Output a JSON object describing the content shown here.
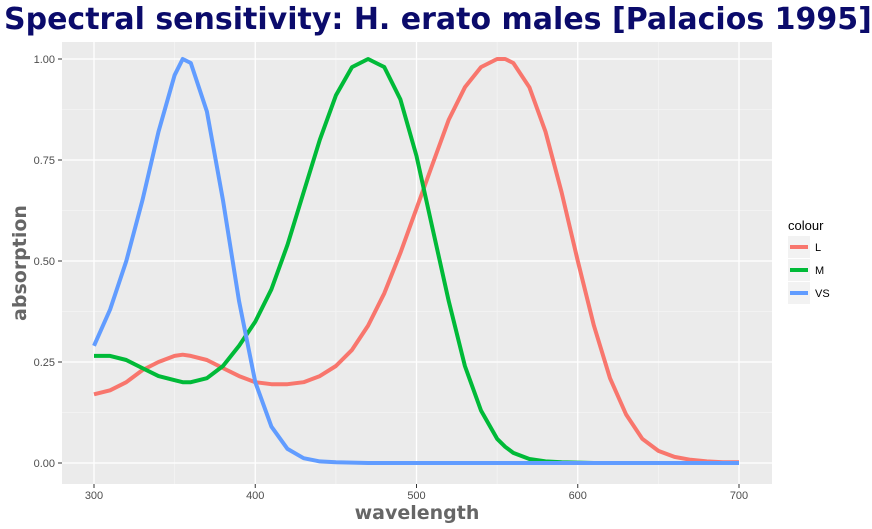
{
  "chart_data": {
    "type": "line",
    "title": "Spectral sensitivity: H. erato males [Palacios 1995]",
    "xlabel": "wavelength",
    "ylabel": "absorption",
    "xlim": [
      300,
      700
    ],
    "ylim": [
      0,
      1
    ],
    "xticks": [
      300,
      400,
      500,
      600,
      700
    ],
    "yticks": [
      "0.00",
      "0.25",
      "0.50",
      "0.75",
      "1.00"
    ],
    "grid": true,
    "legend": {
      "title": "colour",
      "position": "right"
    },
    "x": [
      300,
      310,
      320,
      330,
      340,
      350,
      355,
      360,
      370,
      380,
      390,
      400,
      410,
      420,
      430,
      440,
      450,
      460,
      470,
      480,
      490,
      500,
      510,
      520,
      530,
      540,
      550,
      555,
      560,
      570,
      580,
      590,
      600,
      610,
      620,
      630,
      640,
      650,
      660,
      670,
      680,
      690,
      700
    ],
    "series": [
      {
        "name": "L",
        "color": "#f8766d",
        "values": [
          0.17,
          0.18,
          0.2,
          0.23,
          0.25,
          0.265,
          0.268,
          0.265,
          0.255,
          0.235,
          0.215,
          0.2,
          0.195,
          0.195,
          0.2,
          0.215,
          0.24,
          0.28,
          0.34,
          0.42,
          0.52,
          0.63,
          0.74,
          0.85,
          0.93,
          0.98,
          1.0,
          1.0,
          0.99,
          0.93,
          0.82,
          0.67,
          0.5,
          0.34,
          0.21,
          0.12,
          0.06,
          0.03,
          0.015,
          0.008,
          0.004,
          0.002,
          0.002
        ]
      },
      {
        "name": "M",
        "color": "#00ba38",
        "values": [
          0.265,
          0.265,
          0.255,
          0.235,
          0.215,
          0.205,
          0.2,
          0.2,
          0.21,
          0.24,
          0.29,
          0.35,
          0.43,
          0.54,
          0.67,
          0.8,
          0.91,
          0.98,
          1.0,
          0.98,
          0.9,
          0.76,
          0.58,
          0.4,
          0.24,
          0.13,
          0.06,
          0.04,
          0.025,
          0.01,
          0.004,
          0.002,
          0.001,
          0,
          0,
          0,
          0,
          0,
          0,
          0,
          0,
          0,
          0
        ]
      },
      {
        "name": "VS",
        "color": "#619cff",
        "values": [
          0.29,
          0.38,
          0.5,
          0.65,
          0.82,
          0.96,
          1.0,
          0.99,
          0.87,
          0.65,
          0.4,
          0.2,
          0.09,
          0.035,
          0.012,
          0.004,
          0.002,
          0.001,
          0,
          0,
          0,
          0,
          0,
          0,
          0,
          0,
          0,
          0,
          0,
          0,
          0,
          0,
          0,
          0,
          0,
          0,
          0,
          0,
          0,
          0,
          0,
          0,
          0
        ]
      }
    ]
  }
}
